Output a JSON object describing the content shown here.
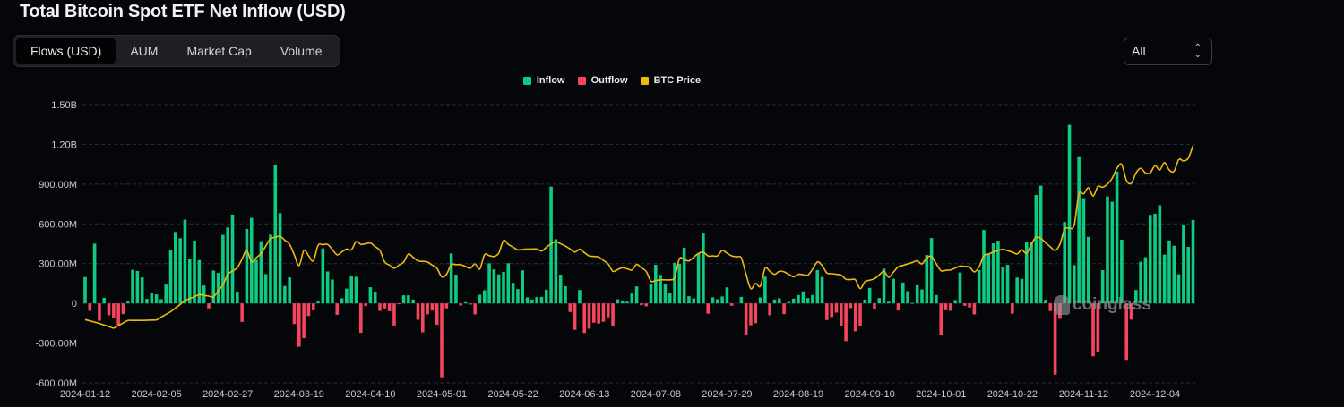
{
  "title": "Total Bitcoin Spot ETF Net Inflow (USD)",
  "tabs": [
    {
      "label": "Flows (USD)",
      "active": true
    },
    {
      "label": "AUM",
      "active": false
    },
    {
      "label": "Market Cap",
      "active": false
    },
    {
      "label": "Volume",
      "active": false
    }
  ],
  "range_select": {
    "value": "All"
  },
  "watermark": "coinglass",
  "colors": {
    "inflow": "#0ecb81",
    "outflow": "#f6465d",
    "btc_price": "#f0b90b",
    "background": "#04060a"
  },
  "chart_data": {
    "type": "bar+line",
    "title": "Total Bitcoin Spot ETF Net Inflow (USD)",
    "legend": [
      {
        "name": "Inflow",
        "color": "#0ecb81"
      },
      {
        "name": "Outflow",
        "color": "#f6465d"
      },
      {
        "name": "BTC Price",
        "color": "#f0b90b"
      }
    ],
    "legend_position": "top-center",
    "grid": true,
    "ylim_musd": [
      -600,
      1500
    ],
    "y_ticks": [
      "1.50B",
      "1.20B",
      "900.00M",
      "600.00M",
      "300.00M",
      "0",
      "-300.00M",
      "-600.00M"
    ],
    "y_tick_values_musd": [
      1500,
      1200,
      900,
      600,
      300,
      0,
      -300,
      -600
    ],
    "x_ticks": [
      "2024-01-12",
      "2024-02-05",
      "2024-02-27",
      "2024-03-19",
      "2024-04-10",
      "2024-05-01",
      "2024-05-22",
      "2024-06-13",
      "2024-07-08",
      "2024-07-29",
      "2024-08-19",
      "2024-09-10",
      "2024-10-01",
      "2024-10-22",
      "2024-11-12",
      "2024-12-04"
    ],
    "x_tick_every_n_days": 15,
    "net_flow_musd": [
      199,
      -56,
      451,
      -131,
      41,
      -90,
      -108,
      -162,
      -81,
      14,
      253,
      244,
      196,
      34,
      77,
      68,
      32,
      142,
      402,
      539,
      492,
      632,
      338,
      474,
      327,
      135,
      -38,
      248,
      230,
      517,
      573,
      670,
      88,
      -140,
      562,
      645,
      329,
      469,
      221,
      519,
      1042,
      681,
      131,
      196,
      -156,
      -327,
      -262,
      -95,
      -52,
      14,
      415,
      241,
      180,
      -86,
      38,
      111,
      210,
      201,
      -223,
      -20,
      122,
      88,
      -56,
      -38,
      -59,
      -167,
      -5,
      61,
      61,
      29,
      -124,
      -219,
      -83,
      -54,
      -162,
      -564,
      -38,
      377,
      217,
      -16,
      9,
      -9,
      -83,
      65,
      99,
      302,
      257,
      219,
      238,
      303,
      155,
      108,
      249,
      45,
      29,
      49,
      49,
      103,
      881,
      484,
      217,
      130,
      -65,
      -200,
      101,
      -224,
      -191,
      -146,
      -152,
      -139,
      -105,
      -173,
      31,
      22,
      13,
      74,
      128,
      -13,
      -22,
      143,
      291,
      215,
      148,
      78,
      307,
      298,
      419,
      54,
      38,
      377,
      527,
      -78,
      45,
      31,
      52,
      121,
      -18,
      0,
      49,
      -238,
      -166,
      -150,
      45,
      202,
      -90,
      29,
      38,
      -81,
      11,
      36,
      63,
      90,
      40,
      63,
      251,
      200,
      -126,
      -103,
      -70,
      -173,
      -285,
      -36,
      -211,
      -168,
      29,
      117,
      -43,
      40,
      262,
      13,
      186,
      -54,
      157,
      92,
      4,
      137,
      105,
      365,
      493,
      63,
      -242,
      -52,
      -56,
      25,
      233,
      -18,
      -31,
      -83,
      251,
      554,
      370,
      453,
      473,
      271,
      291,
      -78,
      195,
      184,
      466,
      460,
      818,
      888,
      27,
      -58,
      -538,
      -117,
      614,
      1347,
      289,
      1110,
      794,
      502,
      -399,
      -370,
      251,
      807,
      767,
      995,
      480,
      -433,
      -123,
      101,
      314,
      348,
      668,
      677,
      740,
      368,
      475,
      435,
      220,
      590,
      426,
      630
    ],
    "btc_price_usd": [
      42600,
      null,
      null,
      41200,
      null,
      null,
      39500,
      null,
      null,
      42300,
      null,
      null,
      42300,
      null,
      null,
      42500,
      null,
      null,
      45500,
      null,
      null,
      49500,
      null,
      null,
      51700,
      null,
      null,
      50900,
      null,
      55300,
      59100,
      null,
      61500,
      null,
      67800,
      63600,
      null,
      66700,
      null,
      72100,
      null,
      73000,
      null,
      70000,
      null,
      62300,
      67800,
      null,
      64000,
      69700,
      null,
      70000,
      null,
      66200,
      null,
      68300,
      68000,
      71000,
      70000,
      null,
      70500,
      null,
      67800,
      63600,
      null,
      61300,
      null,
      63600,
      66500,
      null,
      64000,
      null,
      63600,
      null,
      61300,
      58200,
      59100,
      62600,
      null,
      62600,
      null,
      61300,
      62900,
      61000,
      66200,
      null,
      65600,
      66800,
      71400,
      70000,
      null,
      68000,
      null,
      68300,
      null,
      68300,
      67600,
      null,
      70200,
      71000,
      null,
      69400,
      null,
      67200,
      68200,
      null,
      65800,
      null,
      65400,
      null,
      62900,
      60200,
      null,
      61500,
      null,
      60700,
      62700,
      null,
      60200,
      56600,
      null,
      57100,
      null,
      57100,
      58000,
      64800,
      null,
      64000,
      null,
      66700,
      67200,
      65800,
      null,
      65800,
      67800,
      null,
      65800,
      null,
      65100,
      59100,
      53900,
      55800,
      54800,
      61300,
      null,
      59100,
      60200,
      60000,
      null,
      58200,
      59100,
      null,
      58800,
      61000,
      63600,
      62300,
      59600,
      null,
      59100,
      58800,
      57300,
      null,
      57100,
      53900,
      56400,
      null,
      57500,
      null,
      60200,
      58000,
      null,
      61800,
      null,
      62900,
      null,
      64000,
      62900,
      65100,
      65600,
      62900,
      60400,
      null,
      60700,
      null,
      62100,
      null,
      61800,
      60000,
      61800,
      65800,
      null,
      67200,
      67800,
      68200,
      null,
      67200,
      66500,
      68000,
      66700,
      70000,
      72700,
      72100,
      null,
      69100,
      67800,
      70000,
      75600,
      75900,
      77000,
      88400,
      88400,
      90600,
      87600,
      91100,
      90800,
      91900,
      94100,
      97700,
      99100,
      93300,
      92200,
      96000,
      97700,
      96000,
      96000,
      98700,
      97100,
      99800,
      97100,
      96600,
      100900,
      100400,
      101400,
      106000
    ],
    "btc_price_axis_visible": false
  }
}
